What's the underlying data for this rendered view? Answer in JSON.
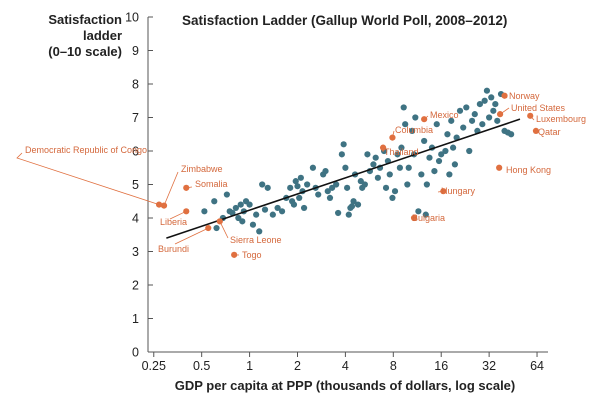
{
  "chart_data": {
    "type": "scatter",
    "title": "Satisfaction Ladder (Gallup World Poll, 2008–2012)",
    "ylabel": [
      "Satisfaction",
      "ladder",
      "(0–10 scale)"
    ],
    "xlabel": "GDP per capita at PPP (thousands of dollars, log scale)",
    "x_scale": "log2",
    "xlim": [
      0.23,
      75
    ],
    "ylim": [
      0,
      10
    ],
    "x_ticks": [
      0.25,
      0.5,
      1,
      2,
      4,
      8,
      16,
      32,
      64
    ],
    "x_tick_labels": [
      "0.25",
      "0.5",
      "1",
      "2",
      "4",
      "8",
      "16",
      "32",
      "64"
    ],
    "y_ticks": [
      0,
      1,
      2,
      3,
      4,
      5,
      6,
      7,
      8,
      9,
      10
    ],
    "y_tick_labels": [
      "0",
      "1",
      "2",
      "3",
      "4",
      "5",
      "6",
      "7",
      "8",
      "9",
      "10"
    ],
    "colors": {
      "points": "#3f7383",
      "highlight": "#e07040",
      "line": "#111111",
      "axis": "#555555",
      "text": "#222222"
    },
    "trend_line": {
      "x": [
        0.3,
        50
      ],
      "y": [
        3.4,
        6.95
      ]
    },
    "highlighted": [
      {
        "label": "Democratic Republic of Congo",
        "x": 0.27,
        "y": 4.4
      },
      {
        "label": "Zimbabwe",
        "x": 0.29,
        "y": 4.37
      },
      {
        "label": "Somalia",
        "x": 0.4,
        "y": 4.9
      },
      {
        "label": "Liberia",
        "x": 0.4,
        "y": 4.2
      },
      {
        "label": "Burundi",
        "x": 0.55,
        "y": 3.7
      },
      {
        "label": "Sierra Leone",
        "x": 0.65,
        "y": 3.9
      },
      {
        "label": "Togo",
        "x": 0.8,
        "y": 2.9
      },
      {
        "label": "Thailand",
        "x": 6.9,
        "y": 6.1
      },
      {
        "label": "Columbia",
        "x": 7.9,
        "y": 6.4
      },
      {
        "label": "Mexico",
        "x": 12.5,
        "y": 6.95
      },
      {
        "label": "Bulgaria",
        "x": 10.8,
        "y": 4.0
      },
      {
        "label": "Hungary",
        "x": 16.5,
        "y": 4.8
      },
      {
        "label": "Hong Kong",
        "x": 37,
        "y": 5.5
      },
      {
        "label": "Norway",
        "x": 40,
        "y": 7.65
      },
      {
        "label": "United States",
        "x": 37.5,
        "y": 7.1
      },
      {
        "label": "Luxembourg",
        "x": 58,
        "y": 7.05
      },
      {
        "label": "Qatar",
        "x": 63,
        "y": 6.6
      }
    ],
    "points": [
      [
        0.52,
        4.2
      ],
      [
        0.6,
        4.5
      ],
      [
        0.62,
        3.7
      ],
      [
        0.68,
        4.0
      ],
      [
        0.72,
        4.7
      ],
      [
        0.75,
        4.2
      ],
      [
        0.78,
        4.15
      ],
      [
        0.82,
        4.3
      ],
      [
        0.85,
        4.0
      ],
      [
        0.88,
        4.4
      ],
      [
        0.9,
        3.9
      ],
      [
        0.92,
        4.2
      ],
      [
        0.95,
        4.5
      ],
      [
        1.0,
        4.4
      ],
      [
        1.05,
        3.8
      ],
      [
        1.1,
        4.1
      ],
      [
        1.15,
        3.6
      ],
      [
        1.2,
        5.0
      ],
      [
        1.25,
        4.25
      ],
      [
        1.3,
        4.9
      ],
      [
        1.4,
        4.1
      ],
      [
        1.5,
        4.3
      ],
      [
        1.6,
        4.2
      ],
      [
        1.7,
        4.6
      ],
      [
        1.8,
        4.9
      ],
      [
        1.85,
        4.5
      ],
      [
        1.9,
        4.4
      ],
      [
        1.95,
        5.1
      ],
      [
        2.0,
        4.95
      ],
      [
        2.05,
        4.6
      ],
      [
        2.1,
        5.2
      ],
      [
        2.15,
        4.8
      ],
      [
        2.2,
        4.3
      ],
      [
        2.3,
        5.0
      ],
      [
        2.5,
        5.5
      ],
      [
        2.6,
        4.9
      ],
      [
        2.7,
        4.7
      ],
      [
        2.9,
        5.3
      ],
      [
        3.0,
        5.4
      ],
      [
        3.1,
        4.8
      ],
      [
        3.2,
        4.6
      ],
      [
        3.3,
        4.9
      ],
      [
        3.5,
        5.0
      ],
      [
        3.6,
        4.15
      ],
      [
        3.8,
        5.9
      ],
      [
        3.9,
        6.2
      ],
      [
        4.0,
        5.5
      ],
      [
        4.1,
        4.9
      ],
      [
        4.2,
        4.1
      ],
      [
        4.3,
        4.3
      ],
      [
        4.4,
        4.35
      ],
      [
        4.5,
        4.5
      ],
      [
        4.6,
        5.3
      ],
      [
        4.8,
        4.4
      ],
      [
        5.0,
        5.1
      ],
      [
        5.1,
        4.9
      ],
      [
        5.3,
        5.0
      ],
      [
        5.5,
        5.9
      ],
      [
        5.7,
        5.4
      ],
      [
        6.0,
        5.6
      ],
      [
        6.2,
        5.8
      ],
      [
        6.4,
        5.2
      ],
      [
        6.6,
        5.5
      ],
      [
        7.0,
        6.0
      ],
      [
        7.2,
        4.9
      ],
      [
        7.4,
        5.7
      ],
      [
        7.6,
        5.3
      ],
      [
        7.9,
        4.6
      ],
      [
        8.2,
        4.8
      ],
      [
        8.5,
        5.9
      ],
      [
        8.8,
        5.5
      ],
      [
        9.0,
        6.1
      ],
      [
        9.3,
        7.3
      ],
      [
        9.5,
        6.8
      ],
      [
        9.8,
        5.0
      ],
      [
        10.0,
        5.5
      ],
      [
        10.5,
        6.6
      ],
      [
        10.8,
        5.9
      ],
      [
        11.0,
        7.0
      ],
      [
        11.5,
        4.2
      ],
      [
        12.0,
        5.3
      ],
      [
        12.5,
        6.3
      ],
      [
        12.8,
        4.1
      ],
      [
        13.0,
        5.0
      ],
      [
        13.5,
        5.8
      ],
      [
        14.0,
        6.1
      ],
      [
        14.5,
        5.4
      ],
      [
        15.0,
        6.8
      ],
      [
        15.5,
        5.7
      ],
      [
        16.0,
        5.9
      ],
      [
        17.0,
        6.0
      ],
      [
        17.5,
        6.5
      ],
      [
        18.0,
        5.3
      ],
      [
        18.5,
        6.9
      ],
      [
        19.0,
        6.1
      ],
      [
        19.5,
        5.6
      ],
      [
        20.0,
        6.4
      ],
      [
        21.0,
        7.2
      ],
      [
        22.0,
        6.7
      ],
      [
        23.0,
        7.3
      ],
      [
        24.0,
        6.0
      ],
      [
        25.0,
        6.9
      ],
      [
        26.0,
        7.1
      ],
      [
        27.0,
        6.6
      ],
      [
        28.0,
        7.4
      ],
      [
        29.0,
        6.8
      ],
      [
        30.0,
        7.5
      ],
      [
        31.0,
        7.8
      ],
      [
        32.0,
        7.0
      ],
      [
        33.0,
        7.6
      ],
      [
        34.0,
        7.2
      ],
      [
        35.0,
        7.4
      ],
      [
        36.0,
        6.9
      ],
      [
        38.0,
        7.7
      ],
      [
        40.0,
        6.6
      ],
      [
        42.0,
        6.55
      ],
      [
        44.0,
        6.5
      ]
    ]
  }
}
